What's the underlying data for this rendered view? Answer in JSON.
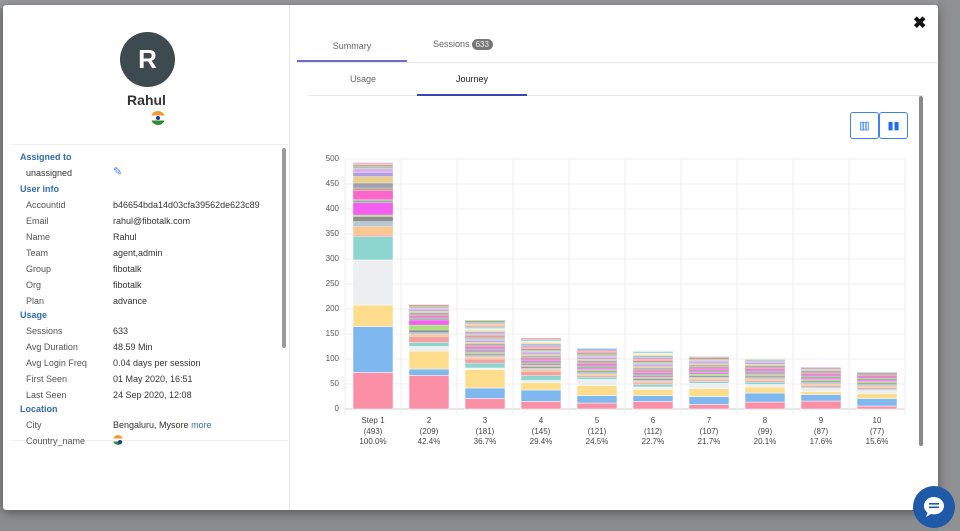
{
  "profile": {
    "initial": "R",
    "name": "Rahul",
    "country_flag": "india-flag-icon"
  },
  "tabs": {
    "summary": "Summary",
    "sessions": "Sessions",
    "sessions_count": "633"
  },
  "subtabs": {
    "usage": "Usage",
    "journey": "Journey"
  },
  "sections": {
    "assigned_to": {
      "title": "Assigned to",
      "value": "unassigned"
    },
    "user_info": {
      "title": "User info",
      "rows": [
        {
          "key": "Accountid",
          "value": "b46654bda14d03cfa39562de623c89"
        },
        {
          "key": "Email",
          "value": "rahul@fibotalk.com"
        },
        {
          "key": "Name",
          "value": "Rahul"
        },
        {
          "key": "Team",
          "value": "agent,admin"
        },
        {
          "key": "Group",
          "value": "fibotalk"
        },
        {
          "key": "Org",
          "value": "fibotalk"
        },
        {
          "key": "Plan",
          "value": "advance"
        }
      ]
    },
    "usage": {
      "title": "Usage",
      "rows": [
        {
          "key": "Sessions",
          "value": "633"
        },
        {
          "key": "Avg Duration",
          "value": "48.59 Min"
        },
        {
          "key": "Avg Login Freq",
          "value": "0.04 days per session"
        },
        {
          "key": "First Seen",
          "value": "01 May 2020, 16:51"
        },
        {
          "key": "Last Seen",
          "value": "24 Sep 2020, 12:08"
        }
      ]
    },
    "location": {
      "title": "Location",
      "city_key": "City",
      "city_value": "Bengaluru, Mysore",
      "more": "more",
      "country_key": "Country_name"
    }
  },
  "chart_data": {
    "type": "bar",
    "stacked": true,
    "ylim": [
      0,
      500
    ],
    "yticks": [
      0,
      50,
      100,
      150,
      200,
      250,
      300,
      350,
      400,
      450,
      500
    ],
    "grid": true,
    "categories": [
      {
        "label": "Step 1",
        "count": "(493)",
        "pct": "100.0%"
      },
      {
        "label": "2",
        "count": "(209)",
        "pct": "42.4%"
      },
      {
        "label": "3",
        "count": "(181)",
        "pct": "36.7%"
      },
      {
        "label": "4",
        "count": "(145)",
        "pct": "29.4%"
      },
      {
        "label": "5",
        "count": "(121)",
        "pct": "24.5%"
      },
      {
        "label": "6",
        "count": "(112)",
        "pct": "22.7%"
      },
      {
        "label": "7",
        "count": "(107)",
        "pct": "21.7%"
      },
      {
        "label": "8",
        "count": "(99)",
        "pct": "20.1%"
      },
      {
        "label": "9",
        "count": "(87)",
        "pct": "17.6%"
      },
      {
        "label": "10",
        "count": "(77)",
        "pct": "15.6%"
      }
    ],
    "totals": [
      493,
      209,
      181,
      145,
      121,
      112,
      107,
      99,
      87,
      77
    ],
    "segments": [
      [
        73,
        92,
        43,
        90,
        47,
        3,
        17,
        10,
        10,
        3,
        25,
        4,
        2,
        18,
        5,
        10,
        13,
        8,
        8,
        4,
        3,
        2,
        2,
        1
      ],
      [
        67,
        13,
        36,
        9,
        8,
        12,
        4,
        4,
        5,
        10,
        10,
        3,
        3,
        3,
        3,
        3,
        3,
        3,
        3,
        3,
        3,
        1
      ],
      [
        21,
        21,
        37,
        3,
        10,
        8,
        4,
        3,
        3,
        3,
        3,
        3,
        3,
        3,
        3,
        3,
        3,
        3,
        3,
        3,
        3,
        3,
        3,
        3,
        3,
        3,
        3,
        3,
        3,
        3,
        3,
        2
      ],
      [
        15,
        23,
        15,
        4,
        10,
        8,
        4,
        3,
        3,
        3,
        3,
        3,
        3,
        3,
        3,
        3,
        3,
        3,
        3,
        3,
        3,
        3,
        3,
        3,
        3,
        3,
        3,
        3
      ],
      [
        12,
        15,
        20,
        12,
        5,
        3,
        3,
        3,
        3,
        3,
        3,
        3,
        3,
        3,
        3,
        3,
        3,
        3,
        3,
        3,
        3,
        3,
        3,
        3
      ],
      [
        15,
        12,
        12,
        5,
        5,
        3,
        3,
        3,
        3,
        3,
        3,
        3,
        3,
        3,
        3,
        3,
        3,
        3,
        3,
        3,
        3,
        3,
        3,
        3,
        3,
        3,
        3
      ],
      [
        9,
        16,
        16,
        10,
        4,
        3,
        3,
        3,
        3,
        3,
        3,
        3,
        3,
        3,
        3,
        3,
        3,
        3,
        3,
        3,
        3,
        2
      ],
      [
        14,
        18,
        12,
        5,
        5,
        3,
        3,
        3,
        3,
        3,
        3,
        3,
        3,
        3,
        3,
        3,
        3,
        3,
        3,
        3
      ],
      [
        16,
        13,
        6,
        6,
        3,
        3,
        3,
        3,
        3,
        3,
        3,
        3,
        3,
        3,
        3,
        3,
        3,
        3,
        1
      ],
      [
        6,
        15,
        10,
        6,
        3,
        3,
        3,
        3,
        3,
        3,
        3,
        3,
        3,
        3,
        3,
        3,
        1
      ]
    ],
    "palette": [
      "#fb8fa6",
      "#7fb8ee",
      "#fddc8c",
      "#eceef0",
      "#8dd6d0",
      "#f5a0a0",
      "#fbc78f",
      "#b7c9d6",
      "#8f8f8f",
      "#a8e07a",
      "#f35ef0",
      "#79c08a",
      "#c87ac8",
      "#ff66c9",
      "#b9a28f",
      "#a0a0b0",
      "#e9cf8a",
      "#b19de6",
      "#d9b2ee",
      "#9fd0a0",
      "#e07c7c",
      "#c0c0c0"
    ]
  },
  "colors": {
    "accent": "#2f6db5",
    "tab_underline": "#6a6fc4",
    "chat": "#1e5aa8"
  }
}
